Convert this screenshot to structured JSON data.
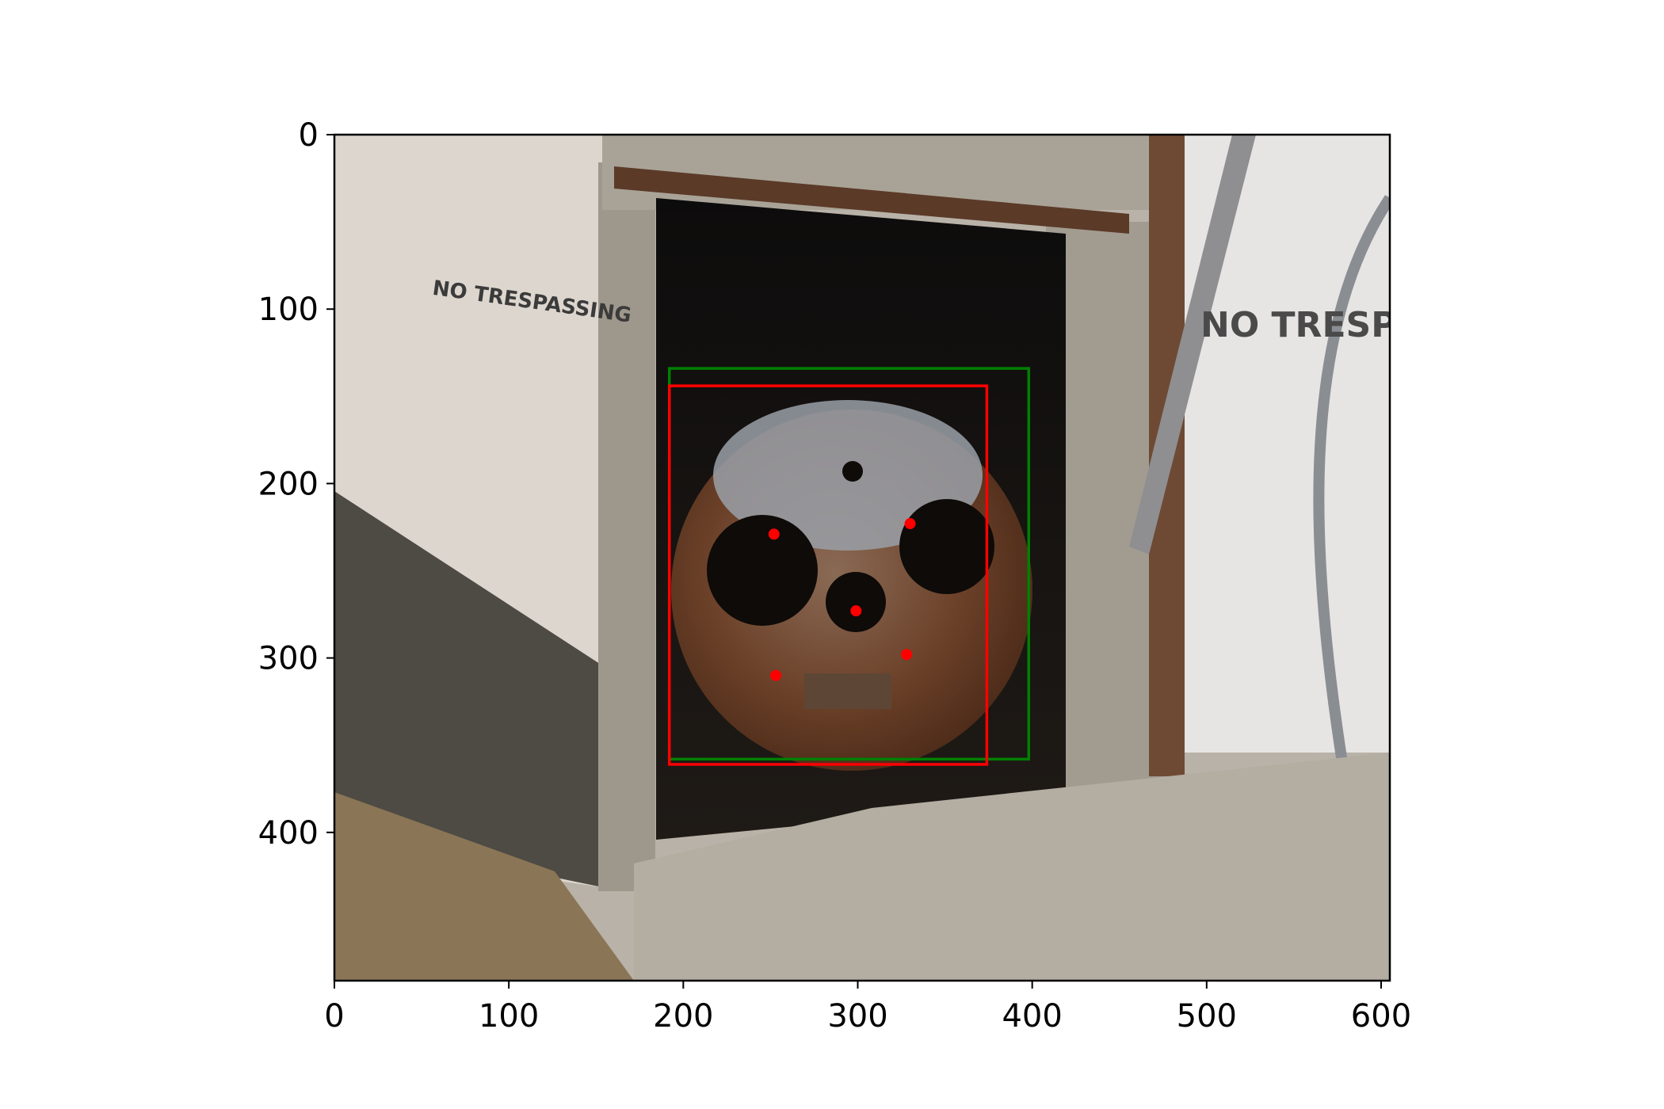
{
  "chart_data": {
    "type": "scatter",
    "title": "",
    "xlabel": "",
    "ylabel": "",
    "background": "photo",
    "xlim": [
      0,
      605
    ],
    "ylim": [
      485,
      0
    ],
    "x_ticks": [
      0,
      100,
      200,
      300,
      400,
      500,
      600
    ],
    "y_ticks": [
      0,
      100,
      200,
      300,
      400
    ],
    "x_tick_labels": [
      "0",
      "100",
      "200",
      "300",
      "400",
      "500",
      "600"
    ],
    "y_tick_labels": [
      "0",
      "100",
      "200",
      "300",
      "400"
    ],
    "photo_text": {
      "left_wall_sign": "NO TRESPASSING",
      "right_door_sign": "NO TRESPASS"
    },
    "boxes": [
      {
        "name": "green-box",
        "color": "#008000",
        "x0": 192,
        "y0": 134,
        "x1": 398,
        "y1": 358
      },
      {
        "name": "red-box",
        "color": "#ff0000",
        "x0": 192,
        "y0": 144,
        "x1": 374,
        "y1": 361
      }
    ],
    "points": {
      "color": "#ff0000",
      "x": [
        252,
        330,
        299,
        253,
        328
      ],
      "y": [
        229,
        223,
        273,
        310,
        298
      ]
    }
  }
}
